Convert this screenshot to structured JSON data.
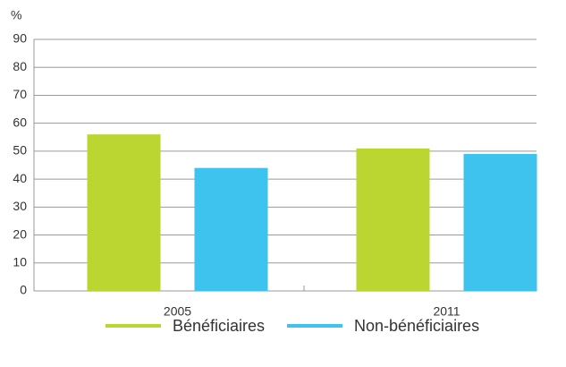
{
  "chart_data": {
    "type": "bar",
    "y_label": "%",
    "categories": [
      "2005",
      "2011"
    ],
    "series": [
      {
        "name": "Bénéficiaires",
        "color": "#bcd631",
        "values": [
          56,
          51
        ]
      },
      {
        "name": "Non-bénéficiaires",
        "color": "#3ec3ee",
        "values": [
          44,
          49
        ]
      }
    ],
    "ylim": [
      0,
      90
    ],
    "yticks": [
      0,
      10,
      20,
      30,
      40,
      50,
      60,
      70,
      80,
      90
    ],
    "grid": true,
    "legend": "bottom"
  }
}
